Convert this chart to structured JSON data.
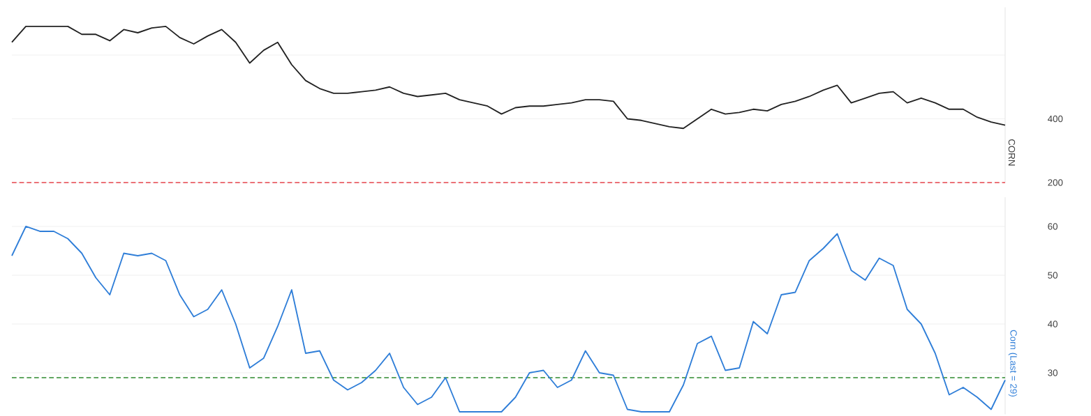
{
  "chart_data": [
    {
      "type": "line",
      "ylabel": "CORN",
      "categories": [
        null,
        null,
        null,
        null,
        null,
        null,
        null,
        null,
        null,
        null,
        null,
        null,
        null,
        null,
        null,
        null,
        null,
        null,
        null,
        null,
        null,
        null,
        null,
        null,
        null,
        null,
        null,
        null,
        null,
        null,
        null,
        null,
        null,
        null,
        null,
        null,
        null,
        null,
        null,
        null,
        null,
        null,
        null,
        null,
        null,
        null,
        null,
        null,
        null,
        null,
        null,
        null,
        null,
        null,
        null,
        null,
        null,
        null,
        null,
        null,
        null,
        null,
        null,
        null,
        null,
        null,
        null,
        null,
        null,
        null,
        null,
        null
      ],
      "series": [
        {
          "color": "#222222",
          "values": [
            640,
            690,
            690,
            690,
            690,
            665,
            665,
            645,
            680,
            670,
            685,
            690,
            655,
            635,
            660,
            680,
            640,
            575,
            615,
            640,
            570,
            520,
            495,
            480,
            480,
            485,
            490,
            500,
            480,
            470,
            475,
            480,
            460,
            450,
            440,
            415,
            435,
            440,
            440,
            445,
            450,
            460,
            460,
            455,
            400,
            395,
            385,
            375,
            370,
            400,
            430,
            415,
            420,
            430,
            425,
            445,
            455,
            470,
            490,
            505,
            450,
            465,
            480,
            485,
            450,
            465,
            450,
            430,
            430,
            405,
            390,
            380
          ]
        }
      ],
      "yticks": [
        200,
        400,
        {
          "value": 600,
          "label": null
        }
      ],
      "grid": "y",
      "ylim": [
        200,
        750
      ],
      "tick_labels": "y",
      "ref_lines": [
        {
          "axis": "y",
          "value": 200,
          "color": "#e8454d",
          "line_style": "dashed"
        }
      ]
    },
    {
      "type": "line",
      "ylabel": "Corn (Last = 29)",
      "categories": [
        null,
        null,
        null,
        null,
        null,
        null,
        null,
        null,
        null,
        null,
        null,
        null,
        null,
        null,
        null,
        null,
        null,
        null,
        null,
        null,
        null,
        null,
        null,
        null,
        null,
        null,
        null,
        null,
        null,
        null,
        null,
        null,
        null,
        null,
        null,
        null,
        null,
        null,
        null,
        null,
        null,
        null,
        null,
        null,
        null,
        null,
        null,
        null,
        null,
        null,
        null,
        null,
        null,
        null,
        null,
        null,
        null,
        null,
        null,
        null,
        null,
        null,
        null,
        null,
        null,
        null,
        null,
        null,
        null,
        null,
        null,
        null
      ],
      "series": [
        {
          "color": "#2f7ed8",
          "values": [
            54,
            60,
            59,
            59,
            57.5,
            54.5,
            49.5,
            46,
            54.5,
            54,
            54.5,
            53,
            46,
            41.5,
            43,
            47,
            40,
            31,
            33,
            39.5,
            47,
            34,
            34.5,
            28.5,
            26.5,
            28,
            30.5,
            34,
            27,
            23.5,
            25,
            29,
            22,
            null,
            null,
            22,
            25,
            30,
            30.5,
            27,
            28.5,
            34.5,
            30,
            29.5,
            22.5,
            22,
            22,
            22,
            27.5,
            36,
            37.5,
            30.5,
            31,
            40.5,
            38,
            46,
            46.5,
            53,
            55.5,
            58.5,
            51,
            49,
            53.5,
            52,
            43,
            40,
            34,
            25.5,
            27,
            25,
            22.5,
            28.5
          ]
        }
      ],
      "yticks": [
        30,
        40,
        50,
        60
      ],
      "grid": "y",
      "ylim": [
        21.5,
        66
      ],
      "tick_labels": "y",
      "ref_lines": [
        {
          "axis": "y",
          "value": 29,
          "color": "#2e8b2e",
          "line_style": "dashed"
        }
      ]
    }
  ]
}
